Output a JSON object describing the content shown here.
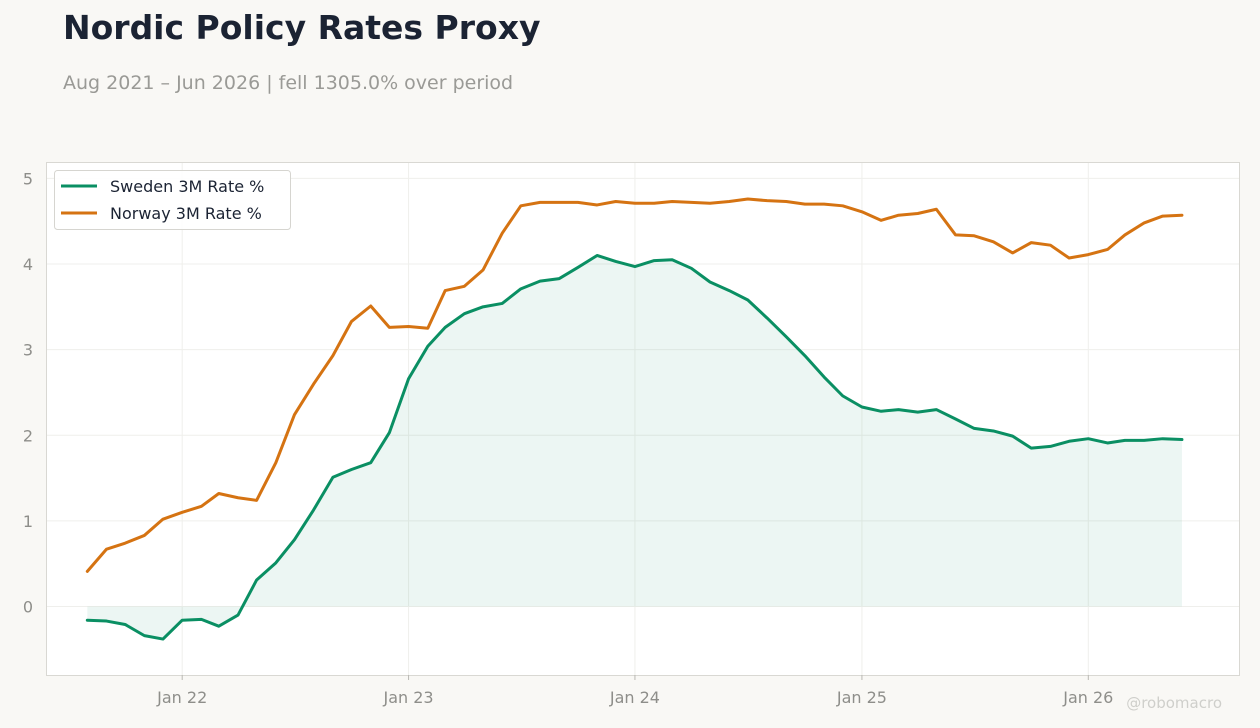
{
  "header": {
    "title": "Nordic Policy Rates Proxy",
    "subtitle": "Aug 2021 – Jun 2026 | fell 1305.0% over period"
  },
  "watermark": "@robomacro",
  "chart_data": {
    "type": "line",
    "title": "Nordic Policy Rates Proxy",
    "subtitle": "Aug 2021 – Jun 2026 | fell 1305.0% over period",
    "xlabel": "",
    "ylabel": "",
    "x_ticks": [
      "Jan 22",
      "Jan 23",
      "Jan 24",
      "Jan 25",
      "Jan 26"
    ],
    "y_ticks": [
      0,
      1,
      2,
      3,
      4,
      5
    ],
    "ylim": [
      -0.8,
      5.18
    ],
    "xlim": [
      "2021-05-28",
      "2026-09-01"
    ],
    "grid": true,
    "legend": "top-left",
    "x": [
      "2021-08",
      "2021-09",
      "2021-10",
      "2021-11",
      "2021-12",
      "2022-01",
      "2022-02",
      "2022-03",
      "2022-04",
      "2022-05",
      "2022-06",
      "2022-07",
      "2022-08",
      "2022-09",
      "2022-10",
      "2022-11",
      "2022-12",
      "2023-01",
      "2023-02",
      "2023-03",
      "2023-04",
      "2023-05",
      "2023-06",
      "2023-07",
      "2023-08",
      "2023-09",
      "2023-10",
      "2023-11",
      "2023-12",
      "2024-01",
      "2024-02",
      "2024-03",
      "2024-04",
      "2024-05",
      "2024-06",
      "2024-07",
      "2024-08",
      "2024-09",
      "2024-10",
      "2024-11",
      "2024-12",
      "2025-01",
      "2025-02",
      "2025-03",
      "2025-04",
      "2025-05",
      "2025-06",
      "2025-07",
      "2025-08",
      "2025-09",
      "2025-10",
      "2025-11",
      "2025-12",
      "2026-01",
      "2026-02",
      "2026-03",
      "2026-04",
      "2026-05",
      "2026-06"
    ],
    "series": [
      {
        "name": "Sweden 3M Rate %",
        "color": "#0a8f63",
        "fill": true,
        "values": [
          -0.16,
          -0.17,
          -0.21,
          -0.34,
          -0.38,
          -0.16,
          -0.15,
          -0.23,
          -0.1,
          0.31,
          0.51,
          0.78,
          1.13,
          1.51,
          1.6,
          1.68,
          2.03,
          2.66,
          3.04,
          3.26,
          3.42,
          3.5,
          3.54,
          3.71,
          3.8,
          3.83,
          3.96,
          4.1,
          4.03,
          3.97,
          4.04,
          4.05,
          3.95,
          3.79,
          3.69,
          3.58,
          3.37,
          3.15,
          2.93,
          2.68,
          2.46,
          2.33,
          2.28,
          2.3,
          2.27,
          2.3,
          2.19,
          2.08,
          2.05,
          1.99,
          1.85,
          1.87,
          1.93,
          1.96,
          1.91,
          1.94,
          1.94,
          1.96,
          1.95
        ]
      },
      {
        "name": "Norway 3M Rate %",
        "color": "#d57312",
        "fill": false,
        "values": [
          0.41,
          0.67,
          0.74,
          0.83,
          1.02,
          1.1,
          1.17,
          1.32,
          1.27,
          1.24,
          1.68,
          2.24,
          2.6,
          2.93,
          3.33,
          3.51,
          3.26,
          3.27,
          3.25,
          3.69,
          3.74,
          3.93,
          4.36,
          4.68,
          4.72,
          4.72,
          4.72,
          4.69,
          4.73,
          4.71,
          4.71,
          4.73,
          4.72,
          4.71,
          4.73,
          4.76,
          4.74,
          4.73,
          4.7,
          4.7,
          4.68,
          4.61,
          4.51,
          4.57,
          4.59,
          4.64,
          4.34,
          4.33,
          4.26,
          4.13,
          4.25,
          4.22,
          4.07,
          4.11,
          4.17,
          4.34,
          4.48,
          4.56,
          4.57
        ]
      }
    ]
  }
}
